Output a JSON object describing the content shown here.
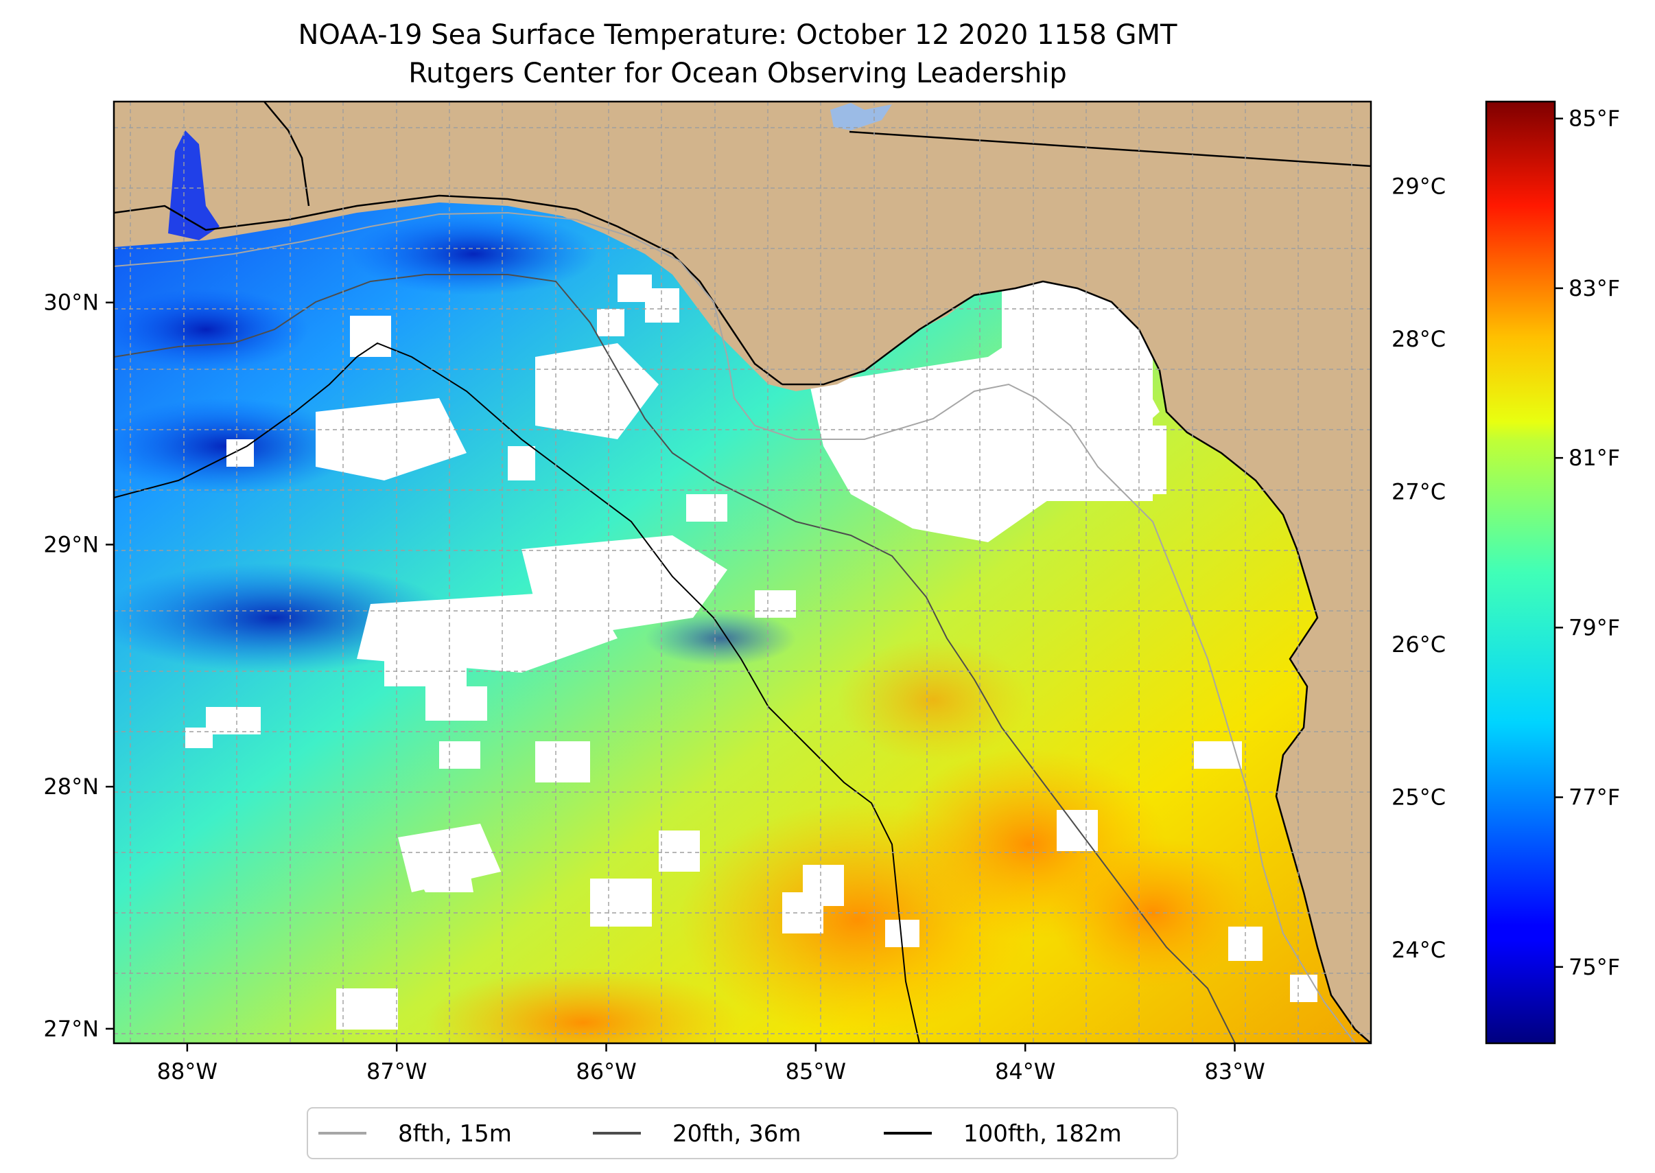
{
  "title": {
    "line1": "NOAA-19 Sea Surface Temperature: October 12 2020 1158 GMT",
    "line2": "Rutgers Center for Ocean Observing Leadership"
  },
  "map": {
    "lon_range": [
      -88.35,
      -82.35
    ],
    "lat_range": [
      26.94,
      30.83
    ],
    "lon_ticks": [
      {
        "value": -88,
        "label": "88°W"
      },
      {
        "value": -87,
        "label": "87°W"
      },
      {
        "value": -86,
        "label": "86°W"
      },
      {
        "value": -85,
        "label": "85°W"
      },
      {
        "value": -84,
        "label": "84°W"
      },
      {
        "value": -83,
        "label": "83°W"
      }
    ],
    "lat_ticks": [
      {
        "value": 27,
        "label": "27°N"
      },
      {
        "value": 28,
        "label": "28°N"
      },
      {
        "value": 29,
        "label": "29°N"
      },
      {
        "value": 30,
        "label": "30°N"
      }
    ],
    "grid": true,
    "land_color": "#d2b48c"
  },
  "colorbar": {
    "cmap": "jet",
    "f_range": [
      74.1,
      85.2
    ],
    "celsius_ticks": [
      {
        "value": 24,
        "label": "24°C"
      },
      {
        "value": 25,
        "label": "25°C"
      },
      {
        "value": 26,
        "label": "26°C"
      },
      {
        "value": 27,
        "label": "27°C"
      },
      {
        "value": 28,
        "label": "28°C"
      },
      {
        "value": 29,
        "label": "29°C"
      }
    ],
    "fahrenheit_ticks": [
      {
        "value": 75,
        "label": "75°F"
      },
      {
        "value": 77,
        "label": "77°F"
      },
      {
        "value": 79,
        "label": "79°F"
      },
      {
        "value": 81,
        "label": "81°F"
      },
      {
        "value": 83,
        "label": "83°F"
      },
      {
        "value": 85,
        "label": "85°F"
      }
    ]
  },
  "legend": {
    "placement": "bottom-center",
    "items": [
      {
        "label": "8fth, 15m",
        "color": "#a6a6a6"
      },
      {
        "label": "20fth, 36m",
        "color": "#4d4d4d"
      },
      {
        "label": "100fth, 182m",
        "color": "#000000"
      }
    ]
  }
}
